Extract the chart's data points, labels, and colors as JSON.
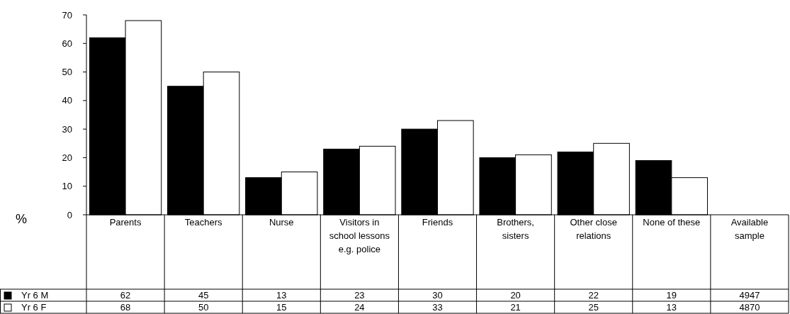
{
  "chart_data": {
    "type": "bar",
    "ylabel": "%",
    "categories": [
      "Parents",
      "Teachers",
      "Nurse",
      "Visitors in school lessons e.g. police",
      "Friends",
      "Brothers, sisters",
      "Other close relations",
      "None of these",
      "Available sample"
    ],
    "series": [
      {
        "name": "Yr 6 M",
        "color": "#000000",
        "values": [
          62,
          45,
          13,
          23,
          30,
          20,
          22,
          19,
          null
        ],
        "value_labels": [
          "62",
          "45",
          "13",
          "23",
          "30",
          "20",
          "22",
          "19",
          "4947"
        ]
      },
      {
        "name": "Yr 6 F",
        "color": "#ffffff",
        "values": [
          68,
          50,
          15,
          24,
          33,
          21,
          25,
          13,
          null
        ],
        "value_labels": [
          "68",
          "50",
          "15",
          "24",
          "33",
          "21",
          "25",
          "13",
          "4870"
        ]
      }
    ],
    "ylim": [
      0,
      70
    ],
    "yticks": [
      0,
      10,
      20,
      30,
      40,
      50,
      60,
      70
    ],
    "legend": "bottom left"
  }
}
